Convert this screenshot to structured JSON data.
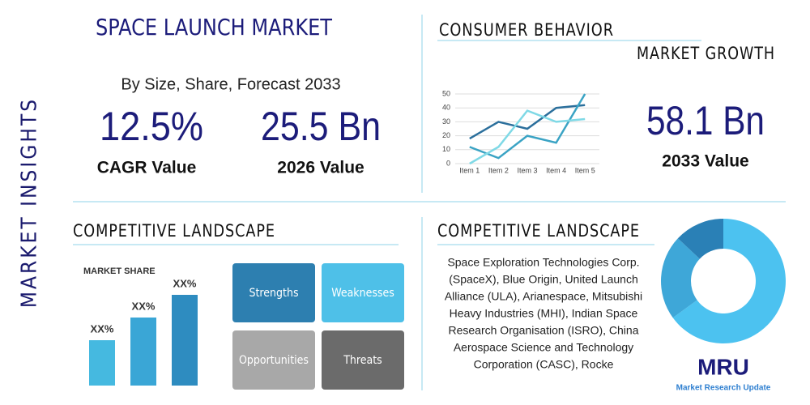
{
  "sidebar": "MARKET INSIGHTS",
  "header": {
    "title": "SPACE LAUNCH MARKET",
    "subtitle": "By Size, Share, Forecast 2033"
  },
  "stats": [
    {
      "value": "12.5%",
      "label": "CAGR Value"
    },
    {
      "value": "25.5 Bn",
      "label": "2026 Value"
    },
    {
      "value": "58.1 Bn",
      "label": "2033 Value"
    }
  ],
  "growth": {
    "title": "CONSUMER BEHAVIOR",
    "subtitle": "MARKET GROWTH"
  },
  "landscape_left": {
    "title": "COMPETITIVE LANDSCAPE"
  },
  "swot": [
    "Strengths",
    "Weaknesses",
    "Opportunities",
    "Threats"
  ],
  "landscape_right": {
    "title": "COMPETITIVE LANDSCAPE",
    "lines": [
      "Space Exploration Technologies Corp.",
      "(SpaceX), Blue Origin, United Launch",
      "Alliance (ULA), Arianespace, Mitsubishi",
      "Heavy Industries (MHI), Indian Space",
      "Research Organisation (ISRO), China",
      "Aerospace Science and Technology",
      "Corporation (CASC), Rocke"
    ]
  },
  "logo": {
    "mark": "MRU",
    "name": "Market Research Update"
  },
  "chart_data": [
    {
      "type": "line",
      "categories": [
        "Item 1",
        "Item 2",
        "Item 3",
        "Item 4",
        "Item 5"
      ],
      "ylim": [
        0,
        50
      ],
      "yticks": [
        0,
        10,
        20,
        30,
        40,
        50
      ],
      "grid": true,
      "series": [
        {
          "color": "#2b6f9c",
          "values": [
            18,
            30,
            25,
            40,
            42
          ]
        },
        {
          "color": "#3aa3c4",
          "values": [
            12,
            4,
            20,
            15,
            50
          ]
        },
        {
          "color": "#7fd9e6",
          "values": [
            0,
            12,
            38,
            30,
            32
          ]
        }
      ]
    },
    {
      "type": "bar",
      "title": "MARKET SHARE",
      "categories": [
        null,
        null,
        null
      ],
      "values": [
        20,
        30,
        40
      ],
      "value_labels": [
        "XX%",
        "XX%",
        "XX%"
      ],
      "colors": [
        "#45b9e0",
        "#3aa6d6",
        "#2e8cc0"
      ]
    },
    {
      "type": "pie",
      "donut": true,
      "values": [
        65,
        22,
        13
      ],
      "colors": [
        "#4cc2f0",
        "#3ea7d8",
        "#2a80b6"
      ]
    }
  ]
}
